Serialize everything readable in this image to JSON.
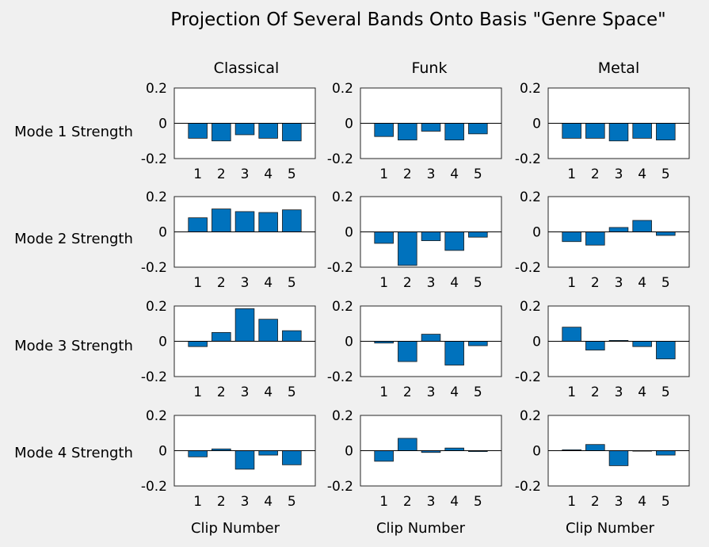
{
  "title": "Projection Of Several Bands Onto Basis \"Genre Space\"",
  "xlabel": "Clip Number",
  "colors": {
    "bar": "#0072BD",
    "bar_edge": "#1a1a1a",
    "axes_bg": "#ffffff",
    "figure_bg": "#f0f0f0"
  },
  "columns": [
    "Classical",
    "Funk",
    "Metal"
  ],
  "rows": [
    "Mode 1 Strength",
    "Mode 2 Strength",
    "Mode 3 Strength",
    "Mode 4 Strength"
  ],
  "chart_data": {
    "type": "bar",
    "categories": [
      "1",
      "2",
      "3",
      "4",
      "5"
    ],
    "ylim": [
      -0.2,
      0.2
    ],
    "yticks": [
      "0.2",
      "0",
      "-0.2"
    ],
    "grid": false,
    "panels": [
      {
        "row": "Mode 1 Strength",
        "column": "Classical",
        "values": [
          -0.085,
          -0.1,
          -0.065,
          -0.085,
          -0.1
        ]
      },
      {
        "row": "Mode 1 Strength",
        "column": "Funk",
        "values": [
          -0.075,
          -0.095,
          -0.045,
          -0.095,
          -0.06
        ]
      },
      {
        "row": "Mode 1 Strength",
        "column": "Metal",
        "values": [
          -0.085,
          -0.085,
          -0.1,
          -0.085,
          -0.095
        ]
      },
      {
        "row": "Mode 2 Strength",
        "column": "Classical",
        "values": [
          0.08,
          0.13,
          0.115,
          0.11,
          0.125
        ]
      },
      {
        "row": "Mode 2 Strength",
        "column": "Funk",
        "values": [
          -0.065,
          -0.19,
          -0.05,
          -0.105,
          -0.03
        ]
      },
      {
        "row": "Mode 2 Strength",
        "column": "Metal",
        "values": [
          -0.055,
          -0.075,
          0.025,
          0.065,
          -0.02
        ]
      },
      {
        "row": "Mode 3 Strength",
        "column": "Classical",
        "values": [
          -0.03,
          0.05,
          0.185,
          0.125,
          0.06
        ]
      },
      {
        "row": "Mode 3 Strength",
        "column": "Funk",
        "values": [
          -0.01,
          -0.115,
          0.04,
          -0.135,
          -0.025
        ]
      },
      {
        "row": "Mode 3 Strength",
        "column": "Metal",
        "values": [
          0.08,
          -0.05,
          0.005,
          -0.03,
          -0.1
        ]
      },
      {
        "row": "Mode 4 Strength",
        "column": "Classical",
        "values": [
          -0.035,
          0.01,
          -0.105,
          -0.025,
          -0.08
        ]
      },
      {
        "row": "Mode 4 Strength",
        "column": "Funk",
        "values": [
          -0.06,
          0.07,
          -0.01,
          0.015,
          -0.005
        ]
      },
      {
        "row": "Mode 4 Strength",
        "column": "Metal",
        "values": [
          0.005,
          0.035,
          -0.085,
          0.0,
          -0.025
        ]
      }
    ]
  }
}
